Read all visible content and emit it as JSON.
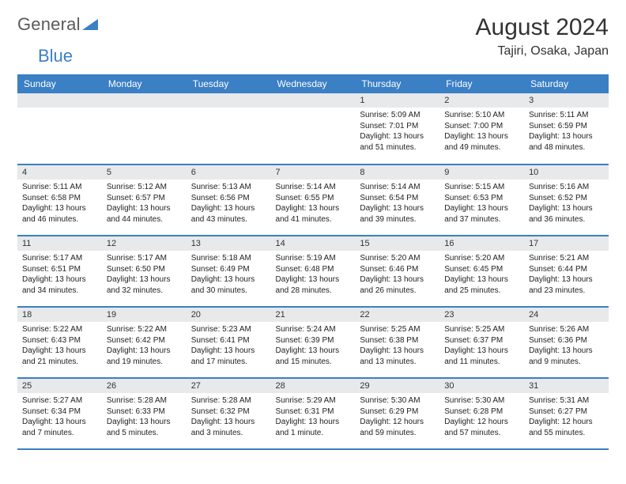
{
  "logo": {
    "part1": "General",
    "part2": "Blue"
  },
  "header": {
    "month": "August 2024",
    "location": "Tajiri, Osaka, Japan"
  },
  "colors": {
    "accent": "#3b7fc4",
    "header_text": "#ffffff",
    "daynum_bg": "#e7e9eb",
    "body_bg": "#ffffff",
    "text": "#222222"
  },
  "layout": {
    "columns": 7,
    "rows": 5,
    "first_weekday_index": 4
  },
  "weekdays": [
    "Sunday",
    "Monday",
    "Tuesday",
    "Wednesday",
    "Thursday",
    "Friday",
    "Saturday"
  ],
  "days": [
    {
      "num": "1",
      "sunrise": "Sunrise: 5:09 AM",
      "sunset": "Sunset: 7:01 PM",
      "daylight": "Daylight: 13 hours and 51 minutes."
    },
    {
      "num": "2",
      "sunrise": "Sunrise: 5:10 AM",
      "sunset": "Sunset: 7:00 PM",
      "daylight": "Daylight: 13 hours and 49 minutes."
    },
    {
      "num": "3",
      "sunrise": "Sunrise: 5:11 AM",
      "sunset": "Sunset: 6:59 PM",
      "daylight": "Daylight: 13 hours and 48 minutes."
    },
    {
      "num": "4",
      "sunrise": "Sunrise: 5:11 AM",
      "sunset": "Sunset: 6:58 PM",
      "daylight": "Daylight: 13 hours and 46 minutes."
    },
    {
      "num": "5",
      "sunrise": "Sunrise: 5:12 AM",
      "sunset": "Sunset: 6:57 PM",
      "daylight": "Daylight: 13 hours and 44 minutes."
    },
    {
      "num": "6",
      "sunrise": "Sunrise: 5:13 AM",
      "sunset": "Sunset: 6:56 PM",
      "daylight": "Daylight: 13 hours and 43 minutes."
    },
    {
      "num": "7",
      "sunrise": "Sunrise: 5:14 AM",
      "sunset": "Sunset: 6:55 PM",
      "daylight": "Daylight: 13 hours and 41 minutes."
    },
    {
      "num": "8",
      "sunrise": "Sunrise: 5:14 AM",
      "sunset": "Sunset: 6:54 PM",
      "daylight": "Daylight: 13 hours and 39 minutes."
    },
    {
      "num": "9",
      "sunrise": "Sunrise: 5:15 AM",
      "sunset": "Sunset: 6:53 PM",
      "daylight": "Daylight: 13 hours and 37 minutes."
    },
    {
      "num": "10",
      "sunrise": "Sunrise: 5:16 AM",
      "sunset": "Sunset: 6:52 PM",
      "daylight": "Daylight: 13 hours and 36 minutes."
    },
    {
      "num": "11",
      "sunrise": "Sunrise: 5:17 AM",
      "sunset": "Sunset: 6:51 PM",
      "daylight": "Daylight: 13 hours and 34 minutes."
    },
    {
      "num": "12",
      "sunrise": "Sunrise: 5:17 AM",
      "sunset": "Sunset: 6:50 PM",
      "daylight": "Daylight: 13 hours and 32 minutes."
    },
    {
      "num": "13",
      "sunrise": "Sunrise: 5:18 AM",
      "sunset": "Sunset: 6:49 PM",
      "daylight": "Daylight: 13 hours and 30 minutes."
    },
    {
      "num": "14",
      "sunrise": "Sunrise: 5:19 AM",
      "sunset": "Sunset: 6:48 PM",
      "daylight": "Daylight: 13 hours and 28 minutes."
    },
    {
      "num": "15",
      "sunrise": "Sunrise: 5:20 AM",
      "sunset": "Sunset: 6:46 PM",
      "daylight": "Daylight: 13 hours and 26 minutes."
    },
    {
      "num": "16",
      "sunrise": "Sunrise: 5:20 AM",
      "sunset": "Sunset: 6:45 PM",
      "daylight": "Daylight: 13 hours and 25 minutes."
    },
    {
      "num": "17",
      "sunrise": "Sunrise: 5:21 AM",
      "sunset": "Sunset: 6:44 PM",
      "daylight": "Daylight: 13 hours and 23 minutes."
    },
    {
      "num": "18",
      "sunrise": "Sunrise: 5:22 AM",
      "sunset": "Sunset: 6:43 PM",
      "daylight": "Daylight: 13 hours and 21 minutes."
    },
    {
      "num": "19",
      "sunrise": "Sunrise: 5:22 AM",
      "sunset": "Sunset: 6:42 PM",
      "daylight": "Daylight: 13 hours and 19 minutes."
    },
    {
      "num": "20",
      "sunrise": "Sunrise: 5:23 AM",
      "sunset": "Sunset: 6:41 PM",
      "daylight": "Daylight: 13 hours and 17 minutes."
    },
    {
      "num": "21",
      "sunrise": "Sunrise: 5:24 AM",
      "sunset": "Sunset: 6:39 PM",
      "daylight": "Daylight: 13 hours and 15 minutes."
    },
    {
      "num": "22",
      "sunrise": "Sunrise: 5:25 AM",
      "sunset": "Sunset: 6:38 PM",
      "daylight": "Daylight: 13 hours and 13 minutes."
    },
    {
      "num": "23",
      "sunrise": "Sunrise: 5:25 AM",
      "sunset": "Sunset: 6:37 PM",
      "daylight": "Daylight: 13 hours and 11 minutes."
    },
    {
      "num": "24",
      "sunrise": "Sunrise: 5:26 AM",
      "sunset": "Sunset: 6:36 PM",
      "daylight": "Daylight: 13 hours and 9 minutes."
    },
    {
      "num": "25",
      "sunrise": "Sunrise: 5:27 AM",
      "sunset": "Sunset: 6:34 PM",
      "daylight": "Daylight: 13 hours and 7 minutes."
    },
    {
      "num": "26",
      "sunrise": "Sunrise: 5:28 AM",
      "sunset": "Sunset: 6:33 PM",
      "daylight": "Daylight: 13 hours and 5 minutes."
    },
    {
      "num": "27",
      "sunrise": "Sunrise: 5:28 AM",
      "sunset": "Sunset: 6:32 PM",
      "daylight": "Daylight: 13 hours and 3 minutes."
    },
    {
      "num": "28",
      "sunrise": "Sunrise: 5:29 AM",
      "sunset": "Sunset: 6:31 PM",
      "daylight": "Daylight: 13 hours and 1 minute."
    },
    {
      "num": "29",
      "sunrise": "Sunrise: 5:30 AM",
      "sunset": "Sunset: 6:29 PM",
      "daylight": "Daylight: 12 hours and 59 minutes."
    },
    {
      "num": "30",
      "sunrise": "Sunrise: 5:30 AM",
      "sunset": "Sunset: 6:28 PM",
      "daylight": "Daylight: 12 hours and 57 minutes."
    },
    {
      "num": "31",
      "sunrise": "Sunrise: 5:31 AM",
      "sunset": "Sunset: 6:27 PM",
      "daylight": "Daylight: 12 hours and 55 minutes."
    }
  ]
}
